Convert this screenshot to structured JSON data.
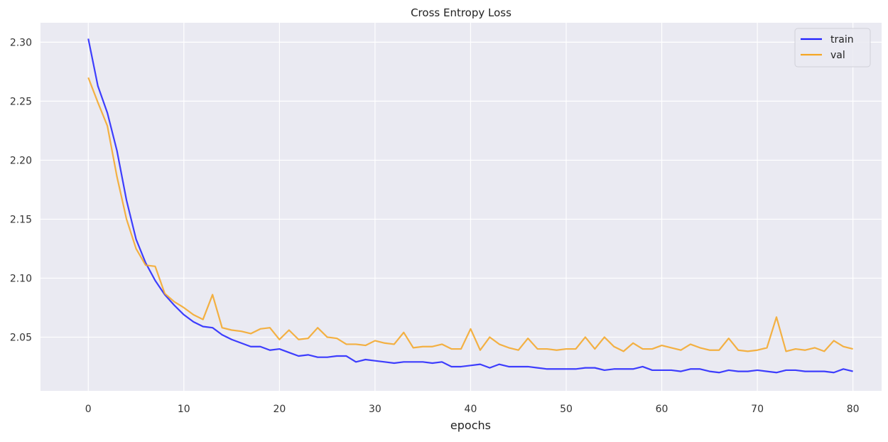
{
  "chart_data": {
    "type": "line",
    "title": "Cross Entropy Loss",
    "xlabel": "epochs",
    "ylabel": "",
    "xlim": [
      -5,
      83
    ],
    "ylim": [
      2.0045,
      2.3165
    ],
    "xticks": [
      0,
      10,
      20,
      30,
      40,
      50,
      60,
      70,
      80
    ],
    "yticks": [
      2.05,
      2.1,
      2.15,
      2.2,
      2.25,
      2.3
    ],
    "ytick_labels": [
      "2.05",
      "2.10",
      "2.15",
      "2.20",
      "2.25",
      "2.30"
    ],
    "grid": true,
    "legend_position": "top-right",
    "colors": {
      "background": "#eaeaf2",
      "grid": "#ffffff",
      "train": "#1f1fff",
      "val": "#f5a623"
    },
    "x": [
      0,
      1,
      2,
      3,
      4,
      5,
      6,
      7,
      8,
      9,
      10,
      11,
      12,
      13,
      14,
      15,
      16,
      17,
      18,
      19,
      20,
      21,
      22,
      23,
      24,
      25,
      26,
      27,
      28,
      29,
      30,
      31,
      32,
      33,
      34,
      35,
      36,
      37,
      38,
      39,
      40,
      41,
      42,
      43,
      44,
      45,
      46,
      47,
      48,
      49,
      50,
      51,
      52,
      53,
      54,
      55,
      56,
      57,
      58,
      59,
      60,
      61,
      62,
      63,
      64,
      65,
      66,
      67,
      68,
      69,
      70,
      71,
      72,
      73,
      74,
      75,
      76,
      77,
      78,
      79,
      80
    ],
    "series": [
      {
        "name": "train",
        "color": "#1f1fff",
        "values": [
          2.303,
          2.263,
          2.24,
          2.208,
          2.166,
          2.133,
          2.113,
          2.098,
          2.086,
          2.077,
          2.069,
          2.063,
          2.059,
          2.058,
          2.052,
          2.048,
          2.045,
          2.042,
          2.042,
          2.039,
          2.04,
          2.037,
          2.034,
          2.035,
          2.033,
          2.033,
          2.034,
          2.034,
          2.029,
          2.031,
          2.03,
          2.029,
          2.028,
          2.029,
          2.029,
          2.029,
          2.028,
          2.029,
          2.025,
          2.025,
          2.026,
          2.027,
          2.024,
          2.027,
          2.025,
          2.025,
          2.025,
          2.024,
          2.023,
          2.023,
          2.023,
          2.023,
          2.024,
          2.024,
          2.022,
          2.023,
          2.023,
          2.023,
          2.025,
          2.022,
          2.022,
          2.022,
          2.021,
          2.023,
          2.023,
          2.021,
          2.02,
          2.022,
          2.021,
          2.021,
          2.022,
          2.021,
          2.02,
          2.022,
          2.022,
          2.021,
          2.021,
          2.021,
          2.02,
          2.023,
          2.021
        ]
      },
      {
        "name": "val",
        "color": "#f5a623",
        "values": [
          2.27,
          2.249,
          2.229,
          2.186,
          2.15,
          2.125,
          2.111,
          2.11,
          2.087,
          2.08,
          2.075,
          2.069,
          2.065,
          2.086,
          2.058,
          2.056,
          2.055,
          2.053,
          2.057,
          2.058,
          2.048,
          2.056,
          2.048,
          2.049,
          2.058,
          2.05,
          2.049,
          2.044,
          2.044,
          2.043,
          2.047,
          2.045,
          2.044,
          2.054,
          2.041,
          2.042,
          2.042,
          2.044,
          2.04,
          2.04,
          2.057,
          2.039,
          2.05,
          2.044,
          2.041,
          2.039,
          2.049,
          2.04,
          2.04,
          2.039,
          2.04,
          2.04,
          2.05,
          2.04,
          2.05,
          2.042,
          2.038,
          2.045,
          2.04,
          2.04,
          2.043,
          2.041,
          2.039,
          2.044,
          2.041,
          2.039,
          2.039,
          2.049,
          2.039,
          2.038,
          2.039,
          2.041,
          2.067,
          2.038,
          2.04,
          2.039,
          2.041,
          2.038,
          2.047,
          2.042,
          2.04
        ]
      }
    ]
  }
}
